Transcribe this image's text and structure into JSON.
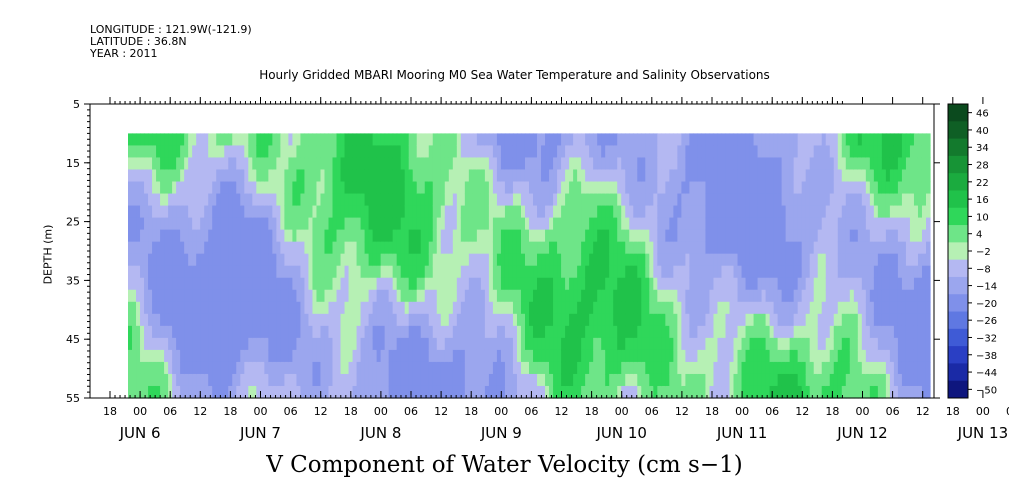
{
  "meta": {
    "longitude": "LONGITUDE : 121.9W(-121.9)",
    "latitude": "LATITUDE : 36.8N",
    "year": "YEAR : 2011"
  },
  "chart_data": {
    "type": "heatmap",
    "title": "Hourly Gridded MBARI Mooring M0 Sea Water Temperature and Salinity Observations",
    "subtitle": "V Component of Water Velocity (cm s−1)",
    "xlabel": "",
    "ylabel": "DEPTH (m)",
    "ylim": [
      55,
      5
    ],
    "y_ticks": [
      "5",
      "15",
      "25",
      "35",
      "45",
      "55"
    ],
    "y_tick_values": [
      5,
      15,
      25,
      35,
      45,
      55
    ],
    "x_hour_ticks": [
      "18",
      "00",
      "06",
      "12",
      "18",
      "00",
      "06",
      "12",
      "18",
      "00",
      "06",
      "12",
      "18",
      "00",
      "06",
      "12",
      "18",
      "00",
      "06",
      "12",
      "18",
      "00",
      "06",
      "12",
      "18",
      "00",
      "06",
      "12",
      "18",
      "00",
      "06",
      "12"
    ],
    "x_day_ticks": [
      "JUN  6",
      "JUN  7",
      "JUN  8",
      "JUN  9",
      "JUN 10",
      "JUN 11",
      "JUN 12",
      "JUN 13"
    ],
    "data_depth_range": [
      10,
      55
    ],
    "colorbar": {
      "labels": [
        "46",
        "40",
        "34",
        "28",
        "22",
        "16",
        "10",
        "4",
        "−2",
        "−8",
        "−14",
        "−20",
        "−26",
        "−32",
        "−38",
        "−44",
        "−50"
      ],
      "levels": [
        46,
        40,
        34,
        28,
        22,
        16,
        10,
        4,
        -2,
        -8,
        -14,
        -20,
        -26,
        -32,
        -38,
        -44,
        -50
      ],
      "colors": [
        "#0b4a1e",
        "#0f5f25",
        "#137a2d",
        "#179436",
        "#1bab3f",
        "#20c24a",
        "#2fd75a",
        "#6ee588",
        "#b6f0b4",
        "#b4b8f2",
        "#9ba6ee",
        "#7f90ea",
        "#5f78e2",
        "#3f5bd6",
        "#2a3fc4",
        "#1a2aa6",
        "#0e167e"
      ]
    }
  }
}
